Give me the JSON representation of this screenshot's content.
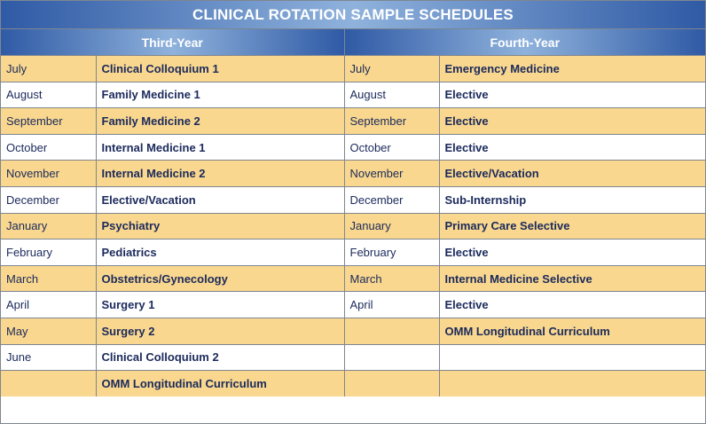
{
  "title": "CLINICAL ROTATION SAMPLE SCHEDULES",
  "columns": {
    "third_year": "Third-Year",
    "fourth_year": "Fourth-Year"
  },
  "rows": [
    {
      "m3": "July",
      "r3": "Clinical Colloquium 1",
      "m4": "July",
      "r4": "Emergency Medicine"
    },
    {
      "m3": "August",
      "r3": "Family Medicine 1",
      "m4": "August",
      "r4": "Elective"
    },
    {
      "m3": "September",
      "r3": "Family Medicine 2",
      "m4": "September",
      "r4": "Elective"
    },
    {
      "m3": "October",
      "r3": "Internal Medicine 1",
      "m4": "October",
      "r4": "Elective"
    },
    {
      "m3": "November",
      "r3": "Internal Medicine 2",
      "m4": "November",
      "r4": "Elective/Vacation"
    },
    {
      "m3": "December",
      "r3": "Elective/Vacation",
      "m4": "December",
      "r4": "Sub-Internship"
    },
    {
      "m3": "January",
      "r3": "Psychiatry",
      "m4": "January",
      "r4": "Primary Care Selective"
    },
    {
      "m3": "February",
      "r3": "Pediatrics",
      "m4": "February",
      "r4": "Elective"
    },
    {
      "m3": "March",
      "r3": "Obstetrics/Gynecology",
      "m4": "March",
      "r4": "Internal Medicine Selective"
    },
    {
      "m3": "April",
      "r3": "Surgery 1",
      "m4": "April",
      "r4": "Elective"
    },
    {
      "m3": "May",
      "r3": "Surgery 2",
      "m4": "",
      "r4": "OMM Longitudinal Curriculum"
    },
    {
      "m3": "June",
      "r3": "Clinical Colloquium 2",
      "m4": "",
      "r4": ""
    },
    {
      "m3": "",
      "r3": "OMM Longitudinal Curriculum",
      "m4": "",
      "r4": ""
    }
  ],
  "colors": {
    "header_blue": "#2f5aa5",
    "header_light": "#8fb2dc",
    "row_alt": "#f9d78e",
    "text_navy": "#1b2a5c"
  }
}
